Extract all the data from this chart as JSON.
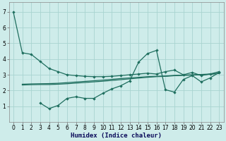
{
  "background_color": "#ceecea",
  "grid_color": "#a8d4d0",
  "line_color": "#1e6e5e",
  "xlabel": "Humidex (Indice chaleur)",
  "xlim": [
    -0.5,
    23.5
  ],
  "ylim": [
    0,
    7.6
  ],
  "yticks": [
    1,
    2,
    3,
    4,
    5,
    6,
    7
  ],
  "xticks": [
    0,
    1,
    2,
    3,
    4,
    5,
    6,
    7,
    8,
    9,
    10,
    11,
    12,
    13,
    14,
    15,
    16,
    17,
    18,
    19,
    20,
    21,
    22,
    23
  ],
  "line1_x": [
    0,
    1,
    2,
    3,
    4,
    5,
    6,
    7,
    8,
    9,
    10,
    11,
    12,
    13,
    14,
    15,
    16,
    17,
    18,
    19,
    20,
    21,
    22,
    23
  ],
  "line1_y": [
    7.0,
    4.4,
    4.3,
    3.85,
    3.4,
    3.2,
    3.0,
    2.95,
    2.9,
    2.88,
    2.88,
    2.9,
    2.95,
    3.0,
    3.05,
    3.1,
    3.05,
    3.2,
    3.3,
    3.0,
    3.15,
    2.95,
    3.05,
    3.2
  ],
  "line2_x": [
    1,
    2,
    3,
    4,
    5,
    6,
    7,
    8,
    9,
    10,
    11,
    12,
    13,
    14,
    15,
    16,
    17,
    18,
    19,
    20,
    21,
    22,
    23
  ],
  "line2_y": [
    2.4,
    2.42,
    2.43,
    2.44,
    2.46,
    2.5,
    2.54,
    2.58,
    2.62,
    2.66,
    2.71,
    2.76,
    2.8,
    2.84,
    2.88,
    2.9,
    2.92,
    2.96,
    2.98,
    3.0,
    3.02,
    3.05,
    3.1
  ],
  "line3_x": [
    1,
    2,
    3,
    4,
    5,
    6,
    7,
    8,
    9,
    10,
    11,
    12,
    13,
    14,
    15,
    16,
    17,
    18,
    19,
    20,
    21,
    22,
    23
  ],
  "line3_y": [
    2.35,
    2.37,
    2.38,
    2.38,
    2.4,
    2.43,
    2.47,
    2.51,
    2.55,
    2.59,
    2.64,
    2.69,
    2.74,
    2.79,
    2.84,
    2.88,
    2.9,
    2.94,
    2.96,
    2.98,
    3.0,
    3.03,
    3.08
  ],
  "line4_x": [
    3,
    4,
    5,
    6,
    7,
    8,
    9,
    10,
    11,
    12,
    13,
    14,
    15,
    16,
    17,
    18,
    19,
    20,
    21,
    22,
    23
  ],
  "line4_y": [
    1.2,
    0.85,
    1.05,
    1.5,
    1.6,
    1.5,
    1.5,
    1.82,
    2.1,
    2.3,
    2.6,
    3.8,
    4.35,
    4.55,
    2.05,
    1.9,
    2.7,
    2.95,
    2.55,
    2.8,
    3.15
  ]
}
